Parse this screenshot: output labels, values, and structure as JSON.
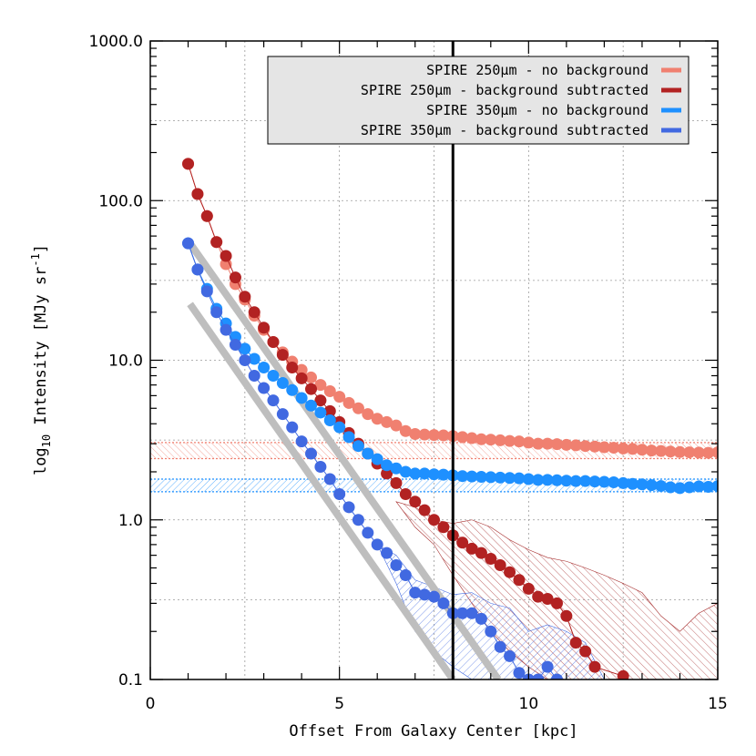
{
  "chart_data": {
    "type": "scatter",
    "title": "",
    "xlabel": "Offset From Galaxy Center [kpc]",
    "ylabel_main": "log",
    "ylabel_sub": "10",
    "ylabel_rest": " Intensity [MJy sr",
    "ylabel_sup": "-1",
    "ylabel_end": "]",
    "xlim": [
      0,
      15
    ],
    "ylim": [
      0.1,
      1000
    ],
    "yscale": "log",
    "grid": true,
    "legend_position": "top-right",
    "x_ticks": [
      0,
      5,
      10,
      15
    ],
    "x_tick_labels": [
      "0",
      "5",
      "10",
      "15"
    ],
    "y_ticks": [
      0.1,
      1,
      10,
      100,
      1000
    ],
    "y_tick_labels": [
      "0.1",
      "1.0",
      "10.0",
      "100.0",
      "1000.0"
    ],
    "vertical_line_x": 8,
    "series": [
      {
        "name": "SPIRE 250μm - no background",
        "color": "#f08070",
        "x": [
          1.0,
          1.25,
          1.5,
          1.75,
          2.0,
          2.25,
          2.5,
          2.75,
          3.0,
          3.25,
          3.5,
          3.75,
          4.0,
          4.25,
          4.5,
          4.75,
          5.0,
          5.25,
          5.5,
          5.75,
          6.0,
          6.25,
          6.5,
          6.75,
          7.0,
          7.25,
          7.5,
          7.75,
          8.0,
          8.25,
          8.5,
          8.75,
          9.0,
          9.25,
          9.5,
          9.75,
          10.0,
          10.25,
          10.5,
          10.75,
          11.0,
          11.25,
          11.5,
          11.75,
          12.0,
          12.25,
          12.5,
          12.75,
          13.0,
          13.25,
          13.5,
          13.75,
          14.0,
          14.25,
          14.5,
          14.75,
          15.0
        ],
        "y": [
          170,
          110,
          80,
          55,
          40,
          30,
          24,
          19,
          15.5,
          13,
          11.2,
          9.8,
          8.7,
          7.8,
          7.0,
          6.4,
          5.9,
          5.4,
          5.0,
          4.6,
          4.3,
          4.1,
          3.9,
          3.6,
          3.45,
          3.42,
          3.4,
          3.38,
          3.35,
          3.3,
          3.25,
          3.2,
          3.18,
          3.15,
          3.12,
          3.1,
          3.05,
          3.0,
          3.0,
          2.98,
          2.95,
          2.93,
          2.9,
          2.88,
          2.85,
          2.83,
          2.8,
          2.78,
          2.75,
          2.72,
          2.7,
          2.68,
          2.66,
          2.65,
          2.64,
          2.63,
          2.65
        ]
      },
      {
        "name": "SPIRE 250μm - background subtracted",
        "color": "#b22222",
        "x": [
          1.0,
          1.25,
          1.5,
          1.75,
          2.0,
          2.25,
          2.5,
          2.75,
          3.0,
          3.25,
          3.5,
          3.75,
          4.0,
          4.25,
          4.5,
          4.75,
          5.0,
          5.25,
          5.5,
          5.75,
          6.0,
          6.25,
          6.5,
          6.75,
          7.0,
          7.25,
          7.5,
          7.75,
          8.0,
          8.25,
          8.5,
          8.75,
          9.0,
          9.25,
          9.5,
          9.75,
          10.0,
          10.25,
          10.5,
          10.75,
          11.0,
          11.25,
          11.5,
          11.75,
          12.5
        ],
        "y": [
          170,
          110,
          80,
          55,
          45,
          33,
          25,
          20,
          16,
          13,
          10.8,
          9.0,
          7.7,
          6.6,
          5.6,
          4.8,
          4.1,
          3.5,
          3.0,
          2.6,
          2.25,
          1.95,
          1.7,
          1.45,
          1.3,
          1.15,
          1.0,
          0.9,
          0.8,
          0.72,
          0.66,
          0.62,
          0.57,
          0.52,
          0.47,
          0.42,
          0.37,
          0.33,
          0.32,
          0.3,
          0.25,
          0.17,
          0.15,
          0.12,
          0.105
        ]
      },
      {
        "name": "SPIRE 350μm - no background",
        "color": "#1e90ff",
        "x": [
          1.0,
          1.25,
          1.5,
          1.75,
          2.0,
          2.25,
          2.5,
          2.75,
          3.0,
          3.25,
          3.5,
          3.75,
          4.0,
          4.25,
          4.5,
          4.75,
          5.0,
          5.25,
          5.5,
          5.75,
          6.0,
          6.25,
          6.5,
          6.75,
          7.0,
          7.25,
          7.5,
          7.75,
          8.0,
          8.25,
          8.5,
          8.75,
          9.0,
          9.25,
          9.5,
          9.75,
          10.0,
          10.25,
          10.5,
          10.75,
          11.0,
          11.25,
          11.5,
          11.75,
          12.0,
          12.25,
          12.5,
          12.75,
          13.0,
          13.25,
          13.5,
          13.75,
          14.0,
          14.25,
          14.5,
          14.75,
          15.0
        ],
        "y": [
          54,
          37,
          28,
          21,
          17,
          14,
          11.8,
          10.2,
          9.0,
          8.0,
          7.2,
          6.5,
          5.8,
          5.2,
          4.7,
          4.2,
          3.8,
          3.3,
          2.9,
          2.6,
          2.4,
          2.2,
          2.1,
          2.0,
          1.95,
          1.95,
          1.93,
          1.92,
          1.9,
          1.88,
          1.87,
          1.86,
          1.85,
          1.84,
          1.83,
          1.82,
          1.8,
          1.78,
          1.78,
          1.77,
          1.76,
          1.75,
          1.75,
          1.74,
          1.73,
          1.72,
          1.7,
          1.68,
          1.67,
          1.65,
          1.63,
          1.6,
          1.58,
          1.6,
          1.62,
          1.61,
          1.63
        ]
      },
      {
        "name": "SPIRE 350μm - background subtracted",
        "color": "#4169e1",
        "x": [
          1.0,
          1.25,
          1.5,
          1.75,
          2.0,
          2.25,
          2.5,
          2.75,
          3.0,
          3.25,
          3.5,
          3.75,
          4.0,
          4.25,
          4.5,
          4.75,
          5.0,
          5.25,
          5.5,
          5.75,
          6.0,
          6.25,
          6.5,
          6.75,
          7.0,
          7.25,
          7.5,
          7.75,
          8.0,
          8.25,
          8.5,
          8.75,
          9.0,
          9.25,
          9.5,
          9.75,
          10.0,
          10.25,
          10.5,
          10.75
        ],
        "y": [
          54,
          37,
          27,
          20,
          15.5,
          12.5,
          10,
          8.0,
          6.7,
          5.6,
          4.6,
          3.8,
          3.1,
          2.6,
          2.15,
          1.8,
          1.45,
          1.2,
          1.0,
          0.83,
          0.7,
          0.62,
          0.52,
          0.45,
          0.35,
          0.34,
          0.33,
          0.3,
          0.26,
          0.26,
          0.26,
          0.24,
          0.2,
          0.16,
          0.14,
          0.11,
          0.1,
          0.1,
          0.12,
          0.1
        ]
      }
    ],
    "fit_lines": [
      {
        "color": "#bebebe",
        "x": [
          1.05,
          9.2
        ],
        "y": [
          54,
          0.1
        ]
      },
      {
        "color": "#bebebe",
        "x": [
          1.05,
          8.0
        ],
        "y": [
          22.5,
          0.1
        ]
      }
    ],
    "background_bands": [
      {
        "color": "#f08070",
        "ymin": 2.42,
        "ymax": 3.05
      },
      {
        "color": "#1e90ff",
        "ymin": 1.5,
        "ymax": 1.8
      }
    ],
    "uncertainty_regions": [
      {
        "color": "#a52a2a",
        "upper_x": [
          6.5,
          7.0,
          7.5,
          8.0,
          8.5,
          9.0,
          9.5,
          10.0,
          10.5,
          11.0,
          11.5,
          12.0,
          12.5,
          13.0,
          13.5,
          14.0,
          14.5,
          15.0
        ],
        "upper_y": [
          1.3,
          1.2,
          1.0,
          0.95,
          1.0,
          0.9,
          0.75,
          0.65,
          0.58,
          0.55,
          0.5,
          0.45,
          0.4,
          0.35,
          0.25,
          0.2,
          0.26,
          0.3
        ],
        "lower_x": [
          6.5,
          7.0,
          7.5,
          8.0,
          8.5,
          9.0,
          9.5,
          10.0,
          10.5,
          11.0,
          11.5,
          12.0,
          12.5,
          13.0,
          13.5,
          14.0,
          14.5,
          15.0
        ],
        "lower_y": [
          1.3,
          0.9,
          0.7,
          0.45,
          0.3,
          0.2,
          0.15,
          0.12,
          0.1,
          0.1,
          0.1,
          0.1,
          0.1,
          0.1,
          0.1,
          0.1,
          0.1,
          0.1
        ]
      },
      {
        "color": "#4169e1",
        "upper_x": [
          6.0,
          6.5,
          7.0,
          7.5,
          8.0,
          8.5,
          9.0,
          9.5,
          10.0,
          10.5,
          11.0,
          11.5,
          12.0
        ],
        "upper_y": [
          0.7,
          0.6,
          0.42,
          0.38,
          0.34,
          0.35,
          0.3,
          0.28,
          0.2,
          0.22,
          0.2,
          0.17,
          0.1
        ],
        "lower_x": [
          6.0,
          6.5,
          7.0,
          7.5,
          8.0,
          8.5,
          9.0,
          9.5,
          10.0,
          10.5,
          11.0,
          11.5,
          12.0
        ],
        "lower_y": [
          0.7,
          0.4,
          0.2,
          0.15,
          0.12,
          0.1,
          0.1,
          0.1,
          0.1,
          0.1,
          0.1,
          0.1,
          0.1
        ]
      }
    ],
    "legend": [
      {
        "label": "SPIRE 250μm - no background",
        "color": "#f08070"
      },
      {
        "label": "SPIRE 250μm - background subtracted",
        "color": "#b22222"
      },
      {
        "label": "SPIRE 350μm - no background",
        "color": "#1e90ff"
      },
      {
        "label": "SPIRE 350μm - background subtracted",
        "color": "#4169e1"
      }
    ]
  }
}
